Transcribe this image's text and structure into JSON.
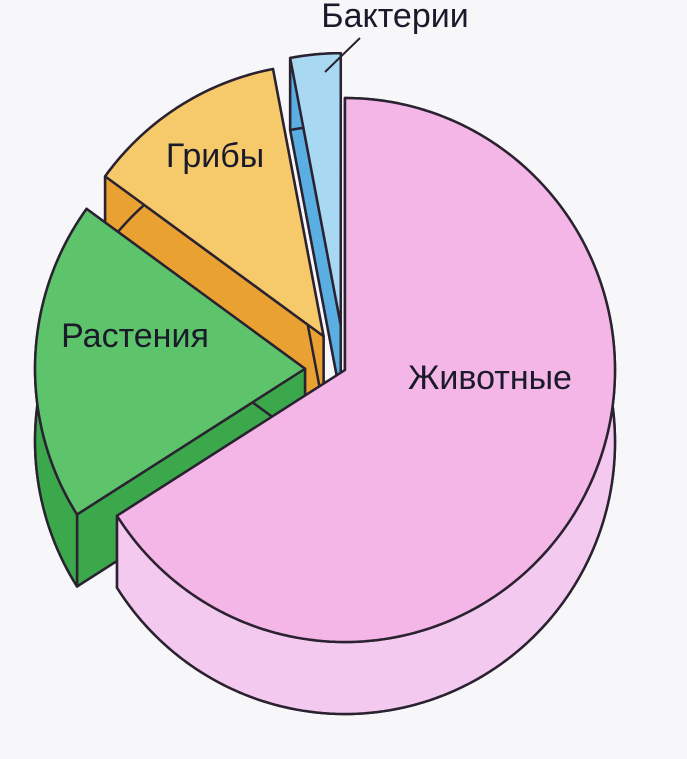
{
  "chart_data": {
    "type": "pie3d",
    "categories": [
      "Животные",
      "Растения",
      "Грибы",
      "Бактерии"
    ],
    "values": [
      66,
      19,
      12,
      3
    ],
    "colors": [
      "#f4b6e6",
      "#5dc46c",
      "#f6c96a",
      "#a8d8f2"
    ],
    "side_colors": [
      "#f3c9ef",
      "#3ba84c",
      "#e9a232",
      "#5aaee2"
    ]
  }
}
